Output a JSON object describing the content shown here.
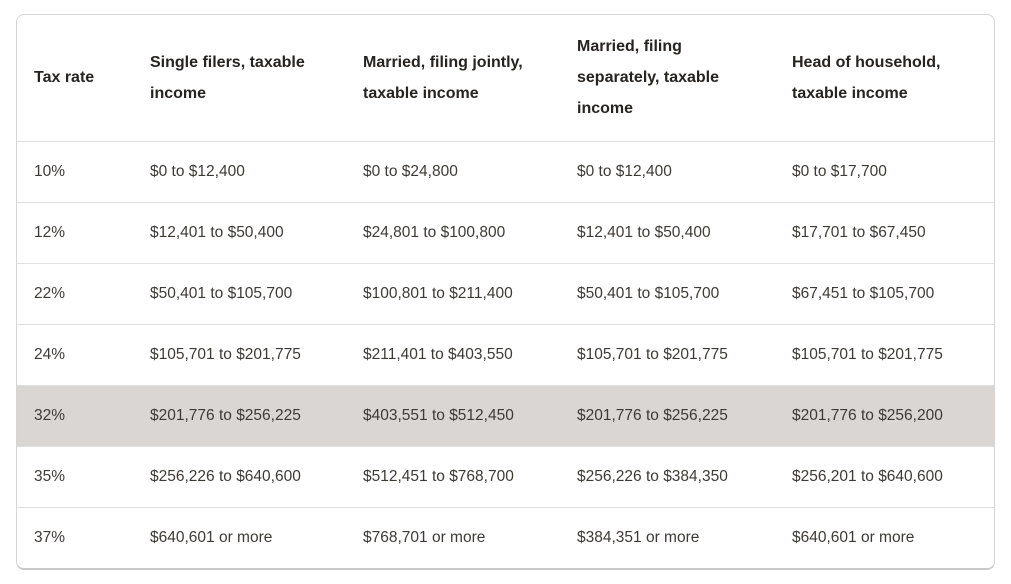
{
  "table": {
    "columns": [
      "Tax rate",
      "Single filers, taxable income",
      "Married, filing jointly, taxable income",
      "Married, filing separately, taxable income",
      "Head of household, taxable income"
    ],
    "rows": [
      {
        "highlighted": false,
        "cells": [
          "10%",
          "$0 to $12,400",
          "$0 to $24,800",
          "$0 to $12,400",
          "$0 to $17,700"
        ]
      },
      {
        "highlighted": false,
        "cells": [
          "12%",
          "$12,401 to $50,400",
          "$24,801 to $100,800",
          "$12,401 to $50,400",
          "$17,701 to $67,450"
        ]
      },
      {
        "highlighted": false,
        "cells": [
          "22%",
          "$50,401 to $105,700",
          "$100,801 to $211,400",
          "$50,401 to $105,700",
          "$67,451 to $105,700"
        ]
      },
      {
        "highlighted": false,
        "cells": [
          "24%",
          "$105,701 to $201,775",
          "$211,401 to $403,550",
          "$105,701 to $201,775",
          "$105,701 to $201,775"
        ]
      },
      {
        "highlighted": true,
        "cells": [
          "32%",
          "$201,776 to $256,225",
          "$403,551 to $512,450",
          "$201,776 to $256,225",
          "$201,776 to $256,200"
        ]
      },
      {
        "highlighted": false,
        "cells": [
          "35%",
          "$256,226 to $640,600",
          "$512,451 to $768,700",
          "$256,226 to $384,350",
          "$256,201 to $640,600"
        ]
      },
      {
        "highlighted": false,
        "cells": [
          "37%",
          "$640,601 or more",
          "$768,701 or more",
          "$384,351 or more",
          "$640,601 or more"
        ]
      }
    ],
    "colors": {
      "border_color": "#d6d6d6",
      "bottom_edge_color": "#c9c9c9",
      "separator_color": "#e1dfdd",
      "highlight_row_bg": "#d9d6d3",
      "header_text_color": "#262321",
      "body_text_color": "#3d3a36"
    }
  }
}
